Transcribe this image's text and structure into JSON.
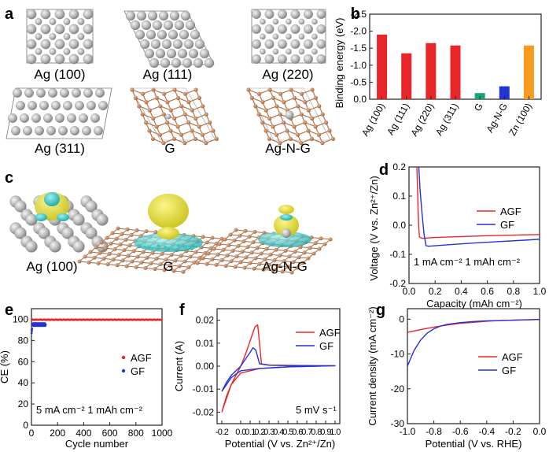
{
  "panels": {
    "a": {
      "letter": "a",
      "structures": [
        "Ag (100)",
        "Ag (111)",
        "Ag (220)",
        "Ag (311)",
        "G",
        "Ag-N-G"
      ]
    },
    "c": {
      "letter": "c",
      "structures": [
        "Ag (100)",
        "G",
        "Ag-N-G"
      ]
    }
  },
  "colors": {
    "silver_atom": "#b5b5b5",
    "carbon_atom": "#c07a4b",
    "isosurface_yellow": "#e8e23a",
    "isosurface_cyan": "#3cc9c9",
    "red": "#e8262a",
    "blue": "#2433d6",
    "green": "#1aa37a",
    "orange": "#f79a1e"
  },
  "chart_data": [
    {
      "id": "b",
      "letter": "b",
      "type": "bar",
      "categories": [
        "Ag (100)",
        "Ag (111)",
        "Ag (220)",
        "Ag (311)",
        "G",
        "Ag-N-G",
        "Zn (100)"
      ],
      "values": [
        -1.9,
        -1.35,
        -1.65,
        -1.58,
        -0.18,
        -0.38,
        -1.58
      ],
      "bar_colors": [
        "#e8262a",
        "#e8262a",
        "#e8262a",
        "#e8262a",
        "#1aa37a",
        "#2433d6",
        "#f79a1e"
      ],
      "ylabel": "Binding energy (eV)",
      "ylim": [
        0,
        -2.5
      ],
      "yticks": [
        "0.0",
        "-0.5",
        "-1.0",
        "-1.5",
        "-2.0",
        "-2.5"
      ],
      "ytick_values": [
        0,
        -0.5,
        -1.0,
        -1.5,
        -2.0,
        -2.5
      ]
    },
    {
      "id": "d",
      "letter": "d",
      "type": "line",
      "xlabel": "Capacity (mAh cm⁻²)",
      "ylabel": "Voltage (V vs. Zn²⁺/Zn)",
      "xlim": [
        0,
        1.0
      ],
      "ylim": [
        -0.2,
        0.2
      ],
      "xticks": [
        "0.0",
        "0.2",
        "0.4",
        "0.6",
        "0.8",
        "1.0"
      ],
      "xtick_values": [
        0,
        0.2,
        0.4,
        0.6,
        0.8,
        1.0
      ],
      "yticks": [
        "-0.2",
        "-0.1",
        "0.0",
        "0.1",
        "0.2"
      ],
      "ytick_values": [
        -0.2,
        -0.1,
        0,
        0.1,
        0.2
      ],
      "annotation": "1 mA cm⁻² 1 mAh cm⁻²",
      "series": [
        {
          "name": "AGF",
          "color": "#e8262a",
          "x": [
            0.06,
            0.065,
            0.07,
            0.075,
            0.08,
            0.1,
            0.2,
            0.4,
            0.6,
            0.8,
            1.0
          ],
          "y": [
            0.2,
            0.13,
            0.05,
            -0.01,
            -0.04,
            -0.045,
            -0.042,
            -0.039,
            -0.036,
            -0.034,
            -0.032
          ]
        },
        {
          "name": "GF",
          "color": "#2433d6",
          "x": [
            0.075,
            0.085,
            0.1,
            0.115,
            0.13,
            0.15,
            0.3,
            0.5,
            0.7,
            0.9,
            1.0
          ],
          "y": [
            0.2,
            0.12,
            0.04,
            -0.03,
            -0.07,
            -0.072,
            -0.067,
            -0.061,
            -0.056,
            -0.051,
            -0.048
          ]
        }
      ]
    },
    {
      "id": "e",
      "letter": "e",
      "type": "scatter",
      "xlabel": "Cycle number",
      "ylabel": "CE (%)",
      "xlim": [
        0,
        1000
      ],
      "ylim": [
        0,
        110
      ],
      "xticks": [
        "0",
        "200",
        "400",
        "600",
        "800",
        "1000"
      ],
      "xtick_values": [
        0,
        200,
        400,
        600,
        800,
        1000
      ],
      "yticks": [
        "0",
        "20",
        "40",
        "60",
        "80",
        "100"
      ],
      "ytick_values": [
        0,
        20,
        40,
        60,
        80,
        100
      ],
      "annotation": "5 mA cm⁻² 1 mAh cm⁻²",
      "series": [
        {
          "name": "AGF",
          "color": "#e8262a",
          "x_range": [
            1,
            1000
          ],
          "y_start": 90,
          "y_value": 99.6
        },
        {
          "name": "GF",
          "color": "#2433d6",
          "x_range": [
            1,
            110
          ],
          "y_start": 86,
          "y_value": 95
        }
      ]
    },
    {
      "id": "f",
      "letter": "f",
      "type": "line",
      "xlabel": "Potential (V vs. Zn²⁺/Zn)",
      "ylabel": "Current (A)",
      "xlim": [
        -0.25,
        1.05
      ],
      "ylim": [
        -0.025,
        0.025
      ],
      "xticks": [
        "-0.2",
        "0.0",
        "0.2",
        "0.4",
        "0.6",
        "0.8",
        "1.0"
      ],
      "xtick_values": [
        -0.2,
        0,
        0.2,
        0.4,
        0.6,
        0.8,
        1.0
      ],
      "extra_xticks": [
        "0.1",
        "0.3",
        "0.5",
        "0.7",
        "0.9"
      ],
      "extra_xtick_values": [
        0.1,
        0.3,
        0.5,
        0.7,
        0.9
      ],
      "yticks": [
        "-0.02",
        "-0.01",
        "0.00",
        "0.01",
        "0.02"
      ],
      "ytick_values": [
        -0.02,
        -0.01,
        0,
        0.01,
        0.02
      ],
      "annotation": "5 mV s⁻¹",
      "series": [
        {
          "name": "AGF",
          "color": "#e8262a",
          "x": [
            -0.2,
            -0.15,
            -0.1,
            -0.05,
            0.0,
            0.05,
            0.1,
            0.15,
            0.18,
            0.2,
            0.22,
            0.3,
            0.5,
            0.8,
            1.0,
            0.8,
            0.5,
            0.2,
            0.0,
            -0.1,
            -0.15,
            -0.2
          ],
          "y": [
            -0.02,
            -0.013,
            -0.008,
            -0.004,
            0.0,
            0.005,
            0.011,
            0.017,
            0.018,
            0.01,
            0.001,
            0.0005,
            0.0003,
            0.0002,
            0.0002,
            0.0,
            -0.0003,
            -0.001,
            -0.003,
            -0.008,
            -0.014,
            -0.02
          ]
        },
        {
          "name": "GF",
          "color": "#2433d6",
          "x": [
            -0.2,
            -0.15,
            -0.1,
            -0.05,
            0.0,
            0.05,
            0.1,
            0.13,
            0.16,
            0.2,
            0.3,
            0.5,
            0.8,
            1.0,
            0.8,
            0.5,
            0.2,
            0.0,
            -0.1,
            -0.15,
            -0.2
          ],
          "y": [
            -0.011,
            -0.007,
            -0.004,
            -0.002,
            0.0,
            0.003,
            0.006,
            0.008,
            0.007,
            0.001,
            0.0004,
            0.0003,
            0.0002,
            0.0002,
            0.0,
            -0.0003,
            -0.001,
            -0.002,
            -0.005,
            -0.008,
            -0.011
          ]
        }
      ]
    },
    {
      "id": "g",
      "letter": "g",
      "type": "line",
      "xlabel": "Potential (V vs. RHE)",
      "ylabel": "Current density (mA cm⁻²)",
      "xlim": [
        -1.0,
        0.0
      ],
      "ylim": [
        -30,
        3
      ],
      "xticks": [
        "-1.0",
        "-0.8",
        "-0.6",
        "-0.4",
        "-0.2",
        "0.0"
      ],
      "xtick_values": [
        -1.0,
        -0.8,
        -0.6,
        -0.4,
        -0.2,
        0.0
      ],
      "yticks": [
        "-30",
        "-20",
        "-10",
        "0"
      ],
      "ytick_values": [
        -30,
        -20,
        -10,
        0
      ],
      "series": [
        {
          "name": "AGF",
          "color": "#e8262a",
          "x": [
            -1.0,
            -0.9,
            -0.8,
            -0.7,
            -0.6,
            -0.5,
            -0.4,
            -0.3,
            -0.2,
            -0.1,
            0.0
          ],
          "y": [
            -3.8,
            -3.0,
            -2.3,
            -1.7,
            -1.2,
            -0.9,
            -0.6,
            -0.4,
            -0.3,
            -0.2,
            -0.1
          ]
        },
        {
          "name": "GF",
          "color": "#2433d6",
          "x": [
            -1.0,
            -0.95,
            -0.9,
            -0.85,
            -0.8,
            -0.75,
            -0.7,
            -0.6,
            -0.5,
            -0.4,
            -0.2,
            0.0
          ],
          "y": [
            -13.5,
            -9.0,
            -6.0,
            -4.0,
            -2.8,
            -2.0,
            -1.5,
            -1.0,
            -0.7,
            -0.5,
            -0.3,
            -0.1
          ]
        }
      ]
    }
  ]
}
